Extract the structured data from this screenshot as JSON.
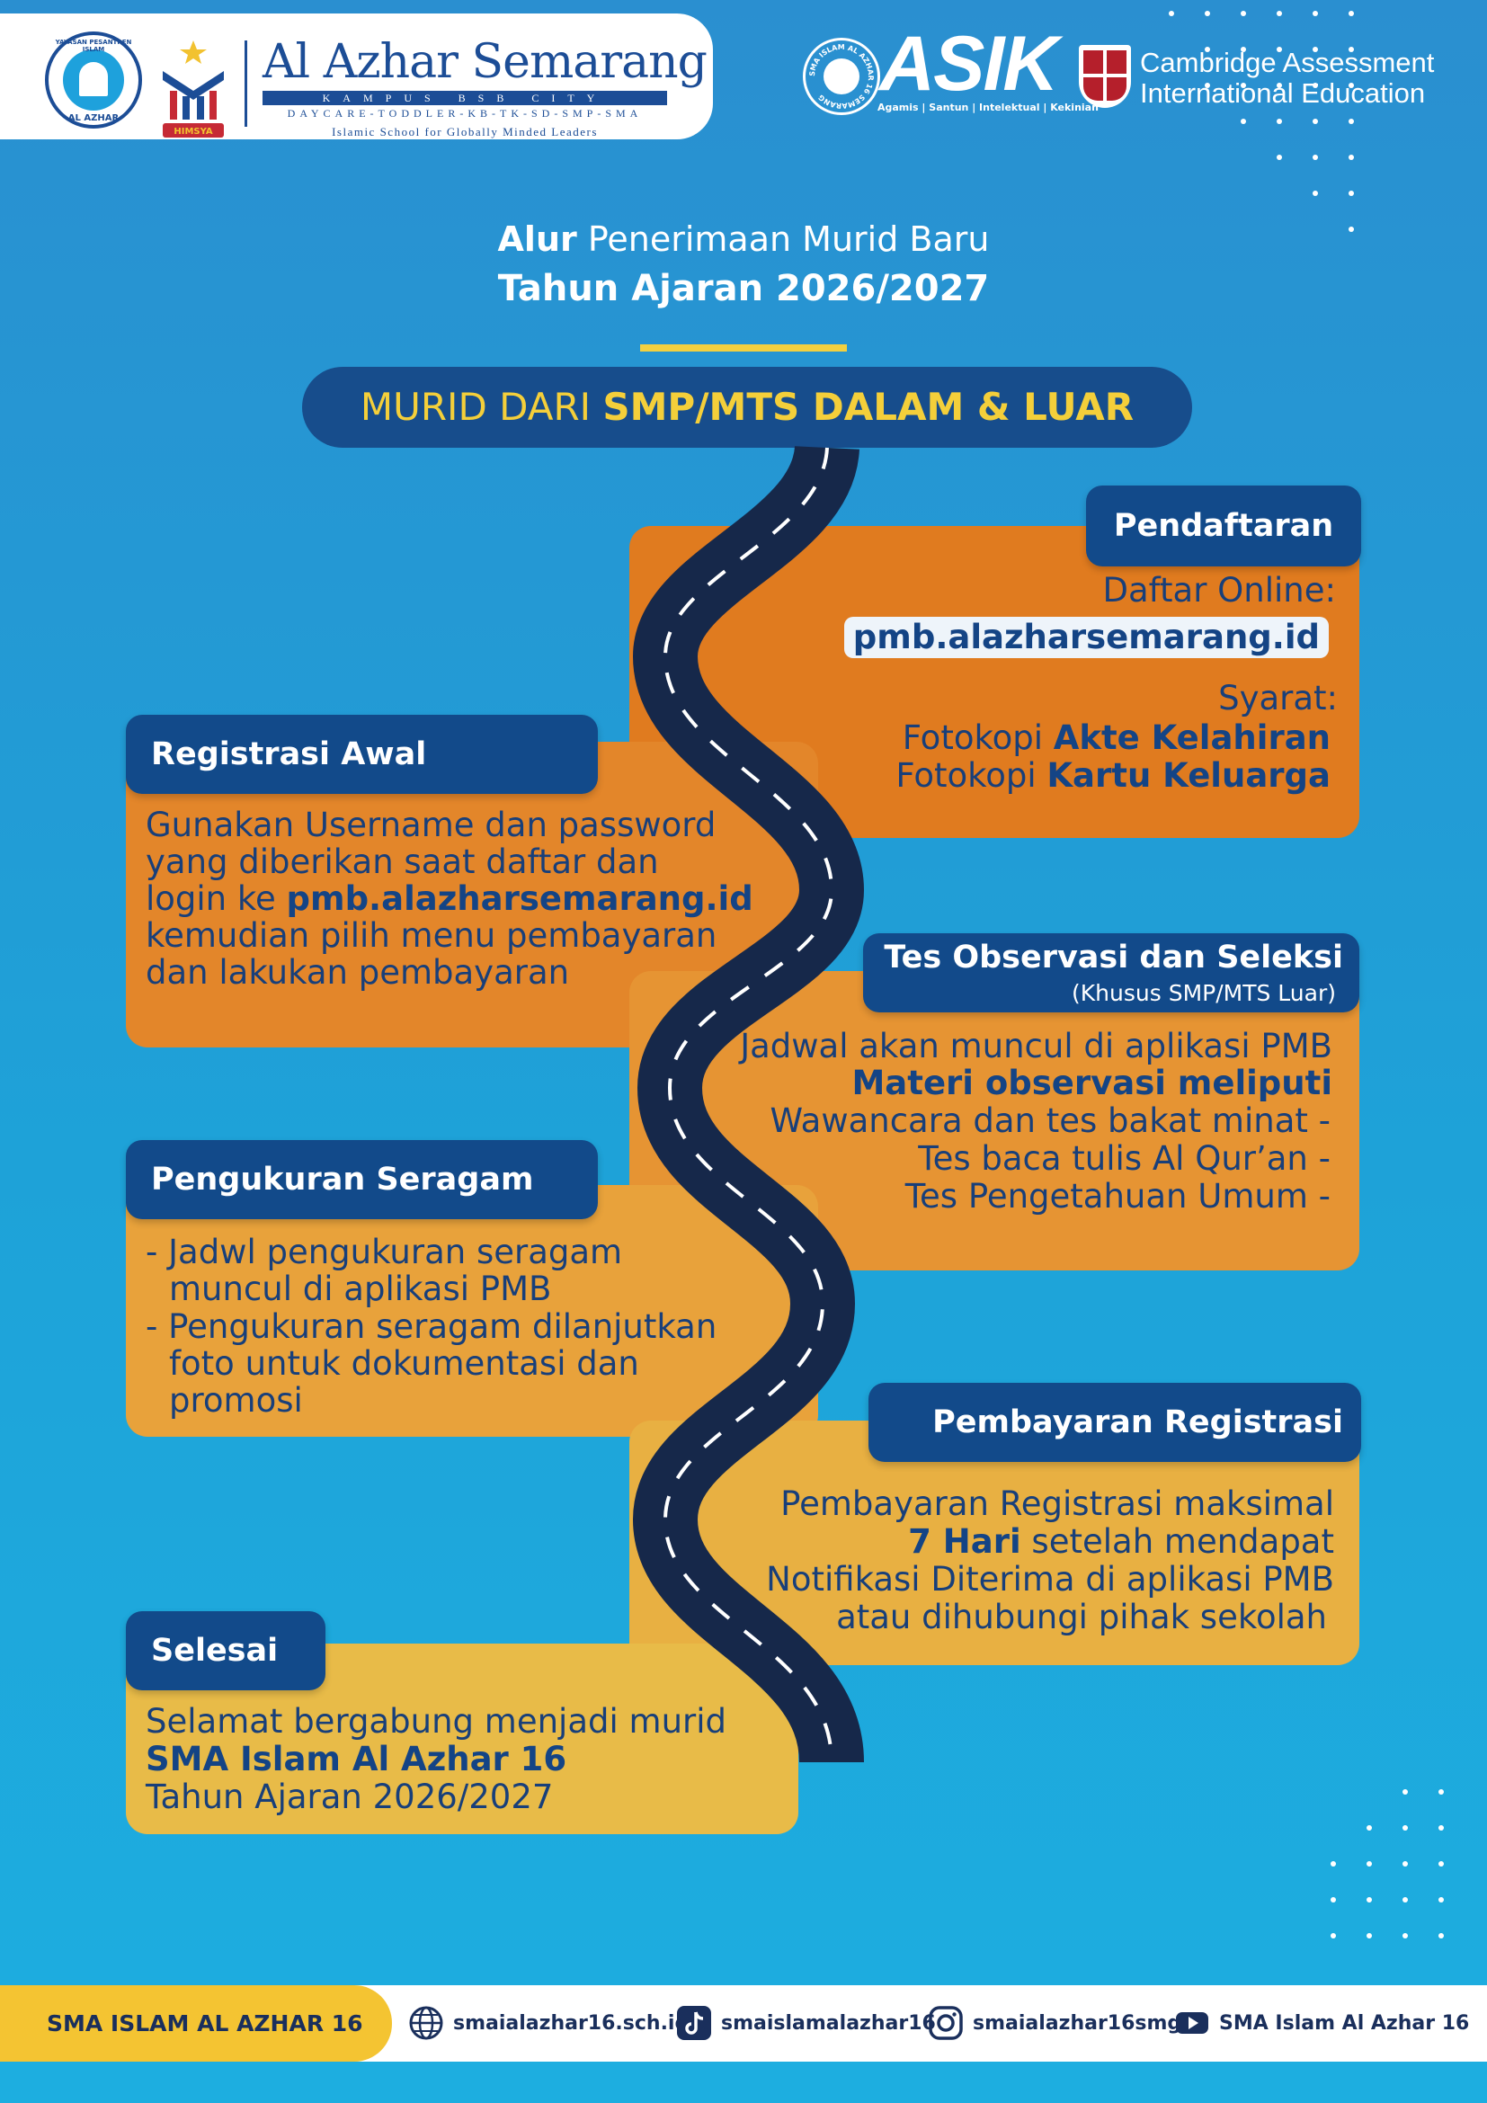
{
  "header": {
    "seal_top_text": "YAYASAN PESANTREN ISLAM",
    "seal_bottom_text": "AL AZHAR",
    "himsya_text": "HIMSYA",
    "brand_name": "Al Azhar Semarang",
    "campus": "KAMPUS BSB CITY",
    "levels": "DAYCARE-TODDLER-KB-TK-SD-SMP-SMA",
    "tagline": "Islamic School for Globally Minded Leaders",
    "asik_seal_text": "SMA ISLAM AL AZHAR 16 SEMARANG",
    "asik_logo": "ASIK",
    "asik_subtitle": "Agamis | Santun | Intelektual | Kekinian",
    "cambridge_line1": "Cambridge Assessment",
    "cambridge_line2": "International Education"
  },
  "title": {
    "line1_bold": "Alur",
    "line1_rest": " Penerimaan Murid Baru",
    "line2": "Tahun Ajaran 2026/2027"
  },
  "banner": {
    "prefix": "MURID DARI ",
    "bold": "SMP/MTS DALAM & LUAR"
  },
  "steps": {
    "pendaftaran": {
      "title": "Pendaftaran",
      "label1": "Daftar Online:",
      "url": "pmb.alazharsemarang.id",
      "syarat": "Syarat:",
      "req1_prefix": "Fotokopi ",
      "req1_bold": "Akte Kelahiran",
      "req2_prefix": "Fotokopi ",
      "req2_bold": "Kartu Keluarga"
    },
    "registrasi_awal": {
      "title": "Registrasi Awal",
      "line1": "Gunakan Username dan password",
      "line2": "yang diberikan saat daftar dan",
      "line3_prefix": "login ke ",
      "line3_bold": "pmb.alazharsemarang.id",
      "line4": "kemudian pilih menu pembayaran",
      "line5": "dan lakukan pembayaran"
    },
    "tes": {
      "title": "Tes Observasi dan Seleksi",
      "subtitle": "(Khusus SMP/MTS Luar)",
      "line1": "Jadwal akan muncul di aplikasi PMB",
      "line2_bold": "Materi  observasi meliputi",
      "item1": "Wawancara dan tes bakat minat  -",
      "item2": "Tes baca tulis Al Qur’an  -",
      "item3": "Tes Pengetahuan Umum  -"
    },
    "seragam": {
      "title": "Pengukuran Seragam",
      "b1_l1": "- Jadwl pengukuran seragam",
      "b1_l2": "muncul di aplikasi PMB",
      "b2_l1": "- Pengukuran seragam dilanjutkan",
      "b2_l2": "foto untuk dokumentasi dan",
      "b2_l3": "promosi"
    },
    "pembayaran": {
      "title": "Pembayaran Registrasi",
      "line1": "Pembayaran Registrasi maksimal",
      "line2_bold": "7 Hari",
      "line2_rest": " setelah mendapat",
      "line3": "Notifikasi Diterima di aplikasi PMB",
      "line4": "atau dihubungi pihak sekolah"
    },
    "selesai": {
      "title": "Selesai",
      "line1": "Selamat bergabung menjadi murid",
      "line2_bold": "SMA Islam Al Azhar 16",
      "line3": "Tahun Ajaran 2026/2027"
    }
  },
  "footer": {
    "school": "SMA ISLAM AL AZHAR 16",
    "website": "smaialazhar16.sch.id",
    "tiktok": "smaislamalazhar16",
    "instagram": "smaialazhar16smg",
    "youtube": "SMA Islam Al Azhar 16"
  },
  "colors": {
    "navy": "#124a8a",
    "orange_top": "#e07b1f",
    "yellow_bottom": "#e8bb48",
    "road": "#16284a",
    "accent_yellow": "#f4cf3a"
  },
  "icons": [
    "globe-icon",
    "tiktok-icon",
    "instagram-icon",
    "youtube-icon",
    "mosque-icon",
    "shield-icon"
  ]
}
